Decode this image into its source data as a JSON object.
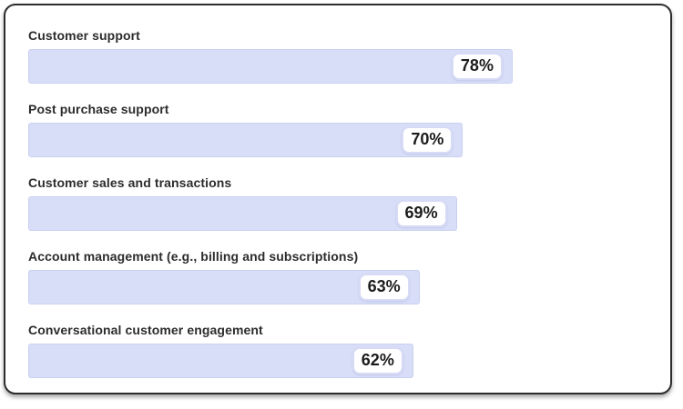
{
  "chart_data": {
    "type": "bar",
    "orientation": "horizontal",
    "title": "",
    "categories": [
      "Customer support",
      "Post purchase support",
      "Customer sales and transactions",
      "Account management (e.g., billing and subscriptions)",
      "Conversational customer engagement"
    ],
    "values": [
      78,
      70,
      69,
      63,
      62
    ],
    "value_labels": [
      "78%",
      "70%",
      "69%",
      "63%",
      "62%"
    ],
    "value_suffix": "%",
    "xlim": [
      0,
      100
    ],
    "grid": false,
    "legend": false,
    "axis_labels_visible": false,
    "colors": {
      "bar_fill": "#d9def8",
      "bar_border": "#c9d0f0",
      "chip_background": "#ffffff",
      "chip_border": "#d7dbf5",
      "chip_text": "#1c1c1c",
      "category_text": "#2c2c2c",
      "card_background": "#ffffff",
      "card_border": "#2d2d2d"
    }
  }
}
